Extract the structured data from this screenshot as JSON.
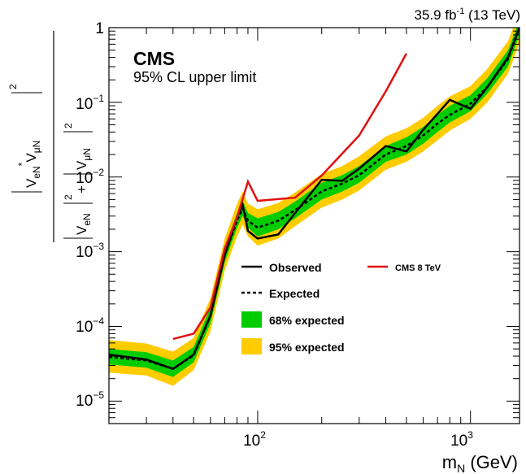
{
  "chart_data": {
    "type": "line",
    "x_scale": "log",
    "y_scale": "log",
    "xlim": [
      20,
      1700
    ],
    "ylim": [
      5e-06,
      1
    ],
    "xlabel": "m",
    "xlabel_sub": "N",
    "xlabel_unit": "(GeV)",
    "ylabel": {
      "num_base": "V",
      "num_sub1": "eN",
      "num_sup1": "*",
      "num_base2": "V",
      "num_sub2": "μN",
      "num_sup": "2",
      "den_base1": "V",
      "den_sub1": "eN",
      "den_sup1": "2",
      "den_plus": "+",
      "den_base2": "V",
      "den_sub2": "μN",
      "den_sup2": "2"
    },
    "lumi": {
      "value": "35.9 fb",
      "sup": "-1",
      "energy": "(13 TeV)"
    },
    "experiment": "CMS",
    "subtitle": "95% CL upper limit",
    "x_ticks": [
      {
        "value": 100,
        "base": "10",
        "exp": "2"
      },
      {
        "value": 1000,
        "base": "10",
        "exp": "3"
      }
    ],
    "y_ticks": [
      {
        "value": 1,
        "label": "1",
        "exp": ""
      },
      {
        "value": 0.1,
        "base": "10",
        "exp": "−1"
      },
      {
        "value": 0.01,
        "base": "10",
        "exp": "−2"
      },
      {
        "value": 0.001,
        "base": "10",
        "exp": "−3"
      },
      {
        "value": 0.0001,
        "base": "10",
        "exp": "−4"
      },
      {
        "value": 1e-05,
        "base": "10",
        "exp": "−5"
      }
    ],
    "legend": {
      "observed": "Observed",
      "expected": "Expected",
      "band68": "68% expected",
      "band95": "95% expected",
      "cms8": "CMS 8 TeV"
    },
    "colors": {
      "observed": "#000000",
      "expected": "#000000",
      "band68": "#00cc00",
      "band95": "#ffcc00",
      "cms8": "#e01010"
    },
    "x": [
      20,
      30,
      40,
      50,
      60,
      70,
      80,
      85,
      90,
      100,
      125,
      150,
      200,
      250,
      300,
      400,
      500,
      600,
      700,
      800,
      1000,
      1200,
      1500,
      1700
    ],
    "observed": [
      4.2e-05,
      3.6e-05,
      2.7e-05,
      4.2e-05,
      0.00014,
      0.0009,
      0.0029,
      0.0042,
      0.0019,
      0.0015,
      0.0017,
      0.0033,
      0.0092,
      0.0089,
      0.013,
      0.026,
      0.022,
      0.043,
      0.07,
      0.108,
      0.082,
      0.16,
      0.4,
      1.0
    ],
    "expected": [
      3.9e-05,
      3.5e-05,
      2.7e-05,
      4.1e-05,
      0.00014,
      0.0009,
      0.0026,
      0.0038,
      0.0026,
      0.0021,
      0.0026,
      0.0036,
      0.0064,
      0.0082,
      0.0106,
      0.02,
      0.026,
      0.036,
      0.052,
      0.068,
      0.096,
      0.16,
      0.38,
      1.0
    ],
    "band68_low": [
      3.1e-05,
      2.8e-05,
      2.1e-05,
      3.3e-05,
      0.00011,
      0.00072,
      0.0021,
      0.003,
      0.0021,
      0.0016,
      0.002,
      0.0028,
      0.005,
      0.0064,
      0.0084,
      0.016,
      0.02,
      0.028,
      0.04,
      0.054,
      0.076,
      0.13,
      0.3,
      0.8
    ],
    "band68_high": [
      5e-05,
      4.5e-05,
      3.5e-05,
      5.3e-05,
      0.00018,
      0.00115,
      0.0033,
      0.0048,
      0.0033,
      0.0028,
      0.0034,
      0.0047,
      0.0084,
      0.0106,
      0.014,
      0.026,
      0.034,
      0.047,
      0.068,
      0.09,
      0.125,
      0.21,
      0.5,
      1.25
    ],
    "band95_low": [
      2.4e-05,
      2.2e-05,
      1.6e-05,
      2.6e-05,
      8.6e-05,
      0.00056,
      0.0016,
      0.0023,
      0.0016,
      0.0012,
      0.0015,
      0.0022,
      0.0039,
      0.005,
      0.0066,
      0.0125,
      0.016,
      0.022,
      0.031,
      0.042,
      0.06,
      0.1,
      0.24,
      0.62
    ],
    "band95_high": [
      6.6e-05,
      5.9e-05,
      4.6e-05,
      7e-05,
      0.00024,
      0.0015,
      0.0044,
      0.0064,
      0.0044,
      0.0037,
      0.0045,
      0.0062,
      0.011,
      0.014,
      0.019,
      0.035,
      0.045,
      0.062,
      0.09,
      0.12,
      0.165,
      0.28,
      0.66,
      1.65
    ],
    "cms8_x": [
      40,
      50,
      60,
      70,
      80,
      90,
      100,
      150,
      200,
      300,
      400,
      500
    ],
    "cms8_y": [
      6.8e-05,
      8e-05,
      0.00018,
      0.0011,
      0.0029,
      0.0087,
      0.0048,
      0.0053,
      0.0105,
      0.036,
      0.14,
      0.45
    ]
  }
}
